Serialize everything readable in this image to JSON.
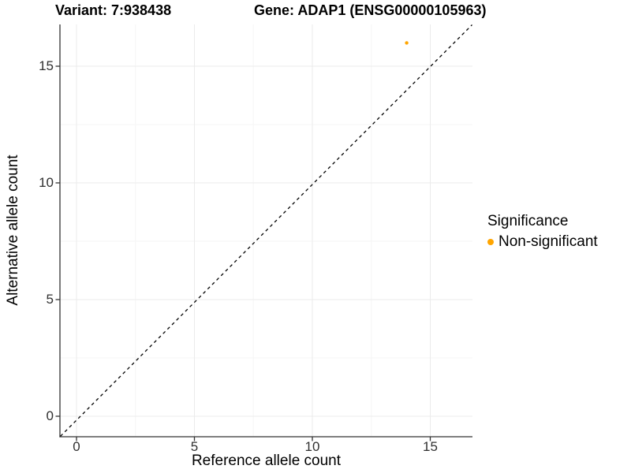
{
  "chart_data": {
    "type": "scatter",
    "title_left": "Variant: 7:938438",
    "title_right": "Gene: ADAP1 (ENSG00000105963)",
    "xlabel": "Reference allele count",
    "ylabel": "Alternative allele count",
    "xlim": [
      -0.8,
      16.8
    ],
    "ylim": [
      -0.8,
      16.8
    ],
    "xticks": [
      0,
      5,
      10,
      15
    ],
    "yticks": [
      0,
      5,
      10,
      15
    ],
    "minor_gridlines_x": [
      2.5,
      7.5,
      12.5
    ],
    "minor_gridlines_y": [
      2.5,
      7.5,
      12.5
    ],
    "grid": "major and minor gridlines, light gray on white panel; axis lines on left and bottom only",
    "points": [
      {
        "x": 14,
        "y": 16,
        "series": "Non-significant",
        "color": "#FFA500"
      }
    ],
    "reference_line": {
      "type": "identity y=x",
      "style": "dashed",
      "color": "#000000"
    },
    "legend": {
      "title": "Significance",
      "position": "right",
      "items": [
        {
          "label": "Non-significant",
          "color": "#FFA500"
        }
      ]
    }
  },
  "colors": {
    "axis": "#333333",
    "tick_label": "#303030",
    "grid_major": "#EBEBEB",
    "grid_minor": "#F6F6F6",
    "background": "#FFFFFF"
  }
}
